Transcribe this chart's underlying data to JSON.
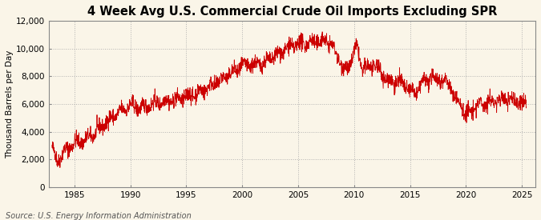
{
  "title": "4 Week Avg U.S. Commercial Crude Oil Imports Excluding SPR",
  "ylabel": "Thousand Barrels per Day",
  "source": "Source: U.S. Energy Information Administration",
  "line_color": "#CC0000",
  "background_color": "#FAF5E8",
  "plot_bg_color": "#FAF5E8",
  "grid_color": "#AAAAAA",
  "spine_color": "#888888",
  "ylim": [
    0,
    12000
  ],
  "yticks": [
    0,
    2000,
    4000,
    6000,
    8000,
    10000,
    12000
  ],
  "ytick_labels": [
    "0",
    "2,000",
    "4,000",
    "6,000",
    "8,000",
    "10,000",
    "12,000"
  ],
  "xlim_start": 1982.7,
  "xlim_end": 2026.2,
  "xticks": [
    1985,
    1990,
    1995,
    2000,
    2005,
    2010,
    2015,
    2020,
    2025
  ],
  "title_fontsize": 10.5,
  "label_fontsize": 7.5,
  "tick_fontsize": 7.5,
  "source_fontsize": 7,
  "line_width": 0.6,
  "anchors": [
    [
      1983.0,
      2800
    ],
    [
      1983.5,
      1900
    ],
    [
      1984.0,
      2500
    ],
    [
      1985.0,
      3200
    ],
    [
      1986.0,
      3400
    ],
    [
      1987.0,
      4000
    ],
    [
      1988.0,
      4800
    ],
    [
      1989.0,
      5400
    ],
    [
      1990.0,
      5900
    ],
    [
      1991.0,
      5700
    ],
    [
      1992.0,
      6000
    ],
    [
      1993.0,
      6200
    ],
    [
      1994.0,
      6300
    ],
    [
      1995.0,
      6500
    ],
    [
      1996.0,
      6800
    ],
    [
      1997.0,
      7200
    ],
    [
      1998.0,
      7700
    ],
    [
      1999.0,
      8200
    ],
    [
      2000.0,
      8700
    ],
    [
      2001.0,
      8800
    ],
    [
      2002.0,
      9000
    ],
    [
      2003.0,
      9500
    ],
    [
      2004.0,
      10000
    ],
    [
      2005.0,
      10300
    ],
    [
      2006.0,
      10400
    ],
    [
      2007.0,
      10500
    ],
    [
      2007.5,
      10600
    ],
    [
      2008.0,
      10200
    ],
    [
      2008.5,
      9500
    ],
    [
      2009.0,
      8600
    ],
    [
      2009.5,
      8500
    ],
    [
      2010.0,
      9800
    ],
    [
      2010.3,
      10000
    ],
    [
      2010.7,
      8500
    ],
    [
      2011.0,
      8600
    ],
    [
      2012.0,
      8700
    ],
    [
      2013.0,
      7700
    ],
    [
      2014.0,
      7600
    ],
    [
      2015.0,
      7000
    ],
    [
      2015.5,
      6700
    ],
    [
      2016.0,
      7500
    ],
    [
      2017.0,
      7900
    ],
    [
      2018.0,
      7700
    ],
    [
      2018.5,
      7500
    ],
    [
      2019.0,
      6400
    ],
    [
      2019.5,
      6000
    ],
    [
      2020.0,
      5200
    ],
    [
      2020.5,
      5500
    ],
    [
      2021.0,
      5900
    ],
    [
      2021.5,
      6100
    ],
    [
      2022.0,
      6100
    ],
    [
      2022.5,
      6200
    ],
    [
      2023.0,
      6300
    ],
    [
      2023.5,
      6400
    ],
    [
      2024.0,
      6300
    ],
    [
      2024.5,
      6200
    ],
    [
      2025.2,
      6000
    ]
  ]
}
